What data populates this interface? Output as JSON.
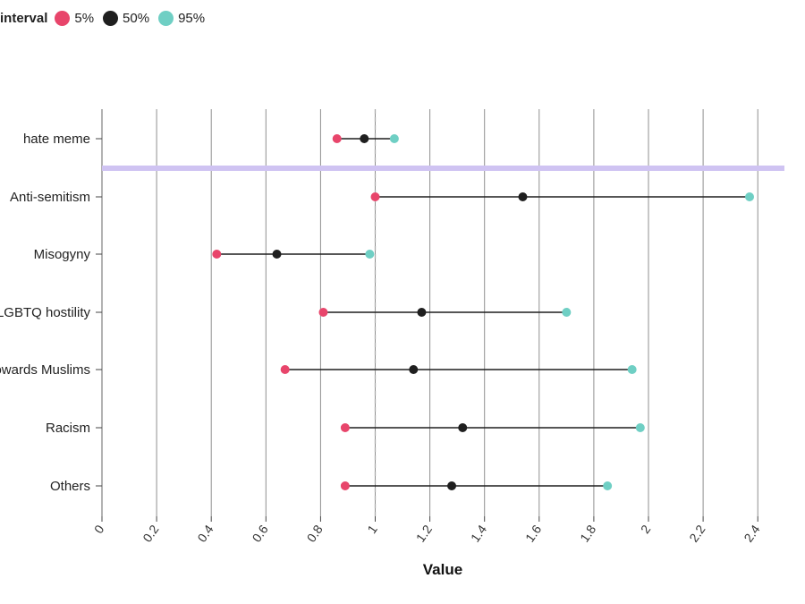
{
  "chart_data": {
    "type": "dot-interval",
    "legend": {
      "title": "interval",
      "items": [
        {
          "label": "5%",
          "color": "#e8456b"
        },
        {
          "label": "50%",
          "color": "#1f1f1f"
        },
        {
          "label": "95%",
          "color": "#6fcfc4"
        }
      ]
    },
    "xlabel": "Value",
    "xlim": [
      0,
      2.5
    ],
    "xticks": [
      0,
      0.2,
      0.4,
      0.6,
      0.8,
      1,
      1.2,
      1.4,
      1.6,
      1.8,
      2,
      2.2,
      2.4
    ],
    "xtick_labels": [
      "0",
      "0.2",
      "0.4",
      "0.6",
      "0.8",
      "1",
      "1.2",
      "1.4",
      "1.6",
      "1.8",
      "2",
      "2.2",
      "2.4"
    ],
    "reference_line": 1,
    "separator_color": "#cfc3f2",
    "grid": "vertical",
    "rows": [
      {
        "label": "hate meme",
        "p5": 0.86,
        "p50": 0.96,
        "p95": 1.07
      },
      {
        "label": "Anti-semitism",
        "p5": 1.0,
        "p50": 1.54,
        "p95": 2.37
      },
      {
        "label": "Misogyny",
        "p5": 0.42,
        "p50": 0.64,
        "p95": 0.98
      },
      {
        "label": "LGBTQ hostility",
        "p5": 0.81,
        "p50": 1.17,
        "p95": 1.7
      },
      {
        "label": "Hostility towards Muslims",
        "p5": 0.67,
        "p50": 1.14,
        "p95": 1.94
      },
      {
        "label": "Racism",
        "p5": 0.89,
        "p50": 1.32,
        "p95": 1.97
      },
      {
        "label": "Others",
        "p5": 0.89,
        "p50": 1.28,
        "p95": 1.85
      }
    ]
  }
}
